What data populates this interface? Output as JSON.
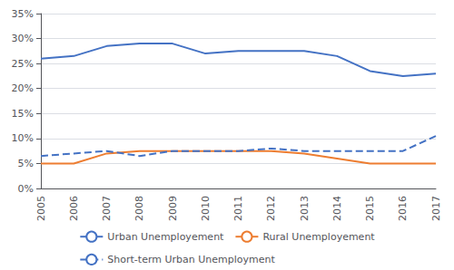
{
  "chart_data": {
    "type": "line",
    "x": [
      2005,
      2006,
      2007,
      2008,
      2009,
      2010,
      2011,
      2012,
      2013,
      2014,
      2015,
      2016,
      2017
    ],
    "series": [
      {
        "name": "Urban Unemployement",
        "color": "#4472C4",
        "line_style": "solid",
        "values": [
          26,
          26.5,
          28.5,
          29,
          29,
          27,
          27.5,
          27.5,
          27.5,
          26.5,
          23.5,
          22.5,
          23
        ]
      },
      {
        "name": "Rural Unemployement",
        "color": "#ED7D31",
        "line_style": "solid",
        "values": [
          5,
          5,
          7,
          7.5,
          7.5,
          7.5,
          7.5,
          7.5,
          7,
          6,
          5,
          5,
          5
        ]
      },
      {
        "name": "Short-term Urban Unemployment",
        "color": "#4472C4",
        "line_style": "dashed",
        "values": [
          6.5,
          7,
          7.5,
          6.5,
          7.5,
          7.5,
          7.5,
          8,
          7.5,
          7.5,
          7.5,
          7.5,
          10.5
        ]
      }
    ],
    "xlim": [
      2005,
      2017
    ],
    "xticks": [
      2005,
      2006,
      2007,
      2008,
      2009,
      2010,
      2011,
      2012,
      2013,
      2014,
      2015,
      2016,
      2017
    ],
    "ylim": [
      0,
      35
    ],
    "yticks": [
      {
        "value": 0,
        "label": "0%"
      },
      {
        "value": 5,
        "label": "5%"
      },
      {
        "value": 10,
        "label": "10%"
      },
      {
        "value": 15,
        "label": "15%"
      },
      {
        "value": 20,
        "label": "20%"
      },
      {
        "value": 25,
        "label": "25%"
      },
      {
        "value": 30,
        "label": "30%"
      },
      {
        "value": 35,
        "label": "35%"
      }
    ],
    "grid": true,
    "legend": "bottom"
  }
}
